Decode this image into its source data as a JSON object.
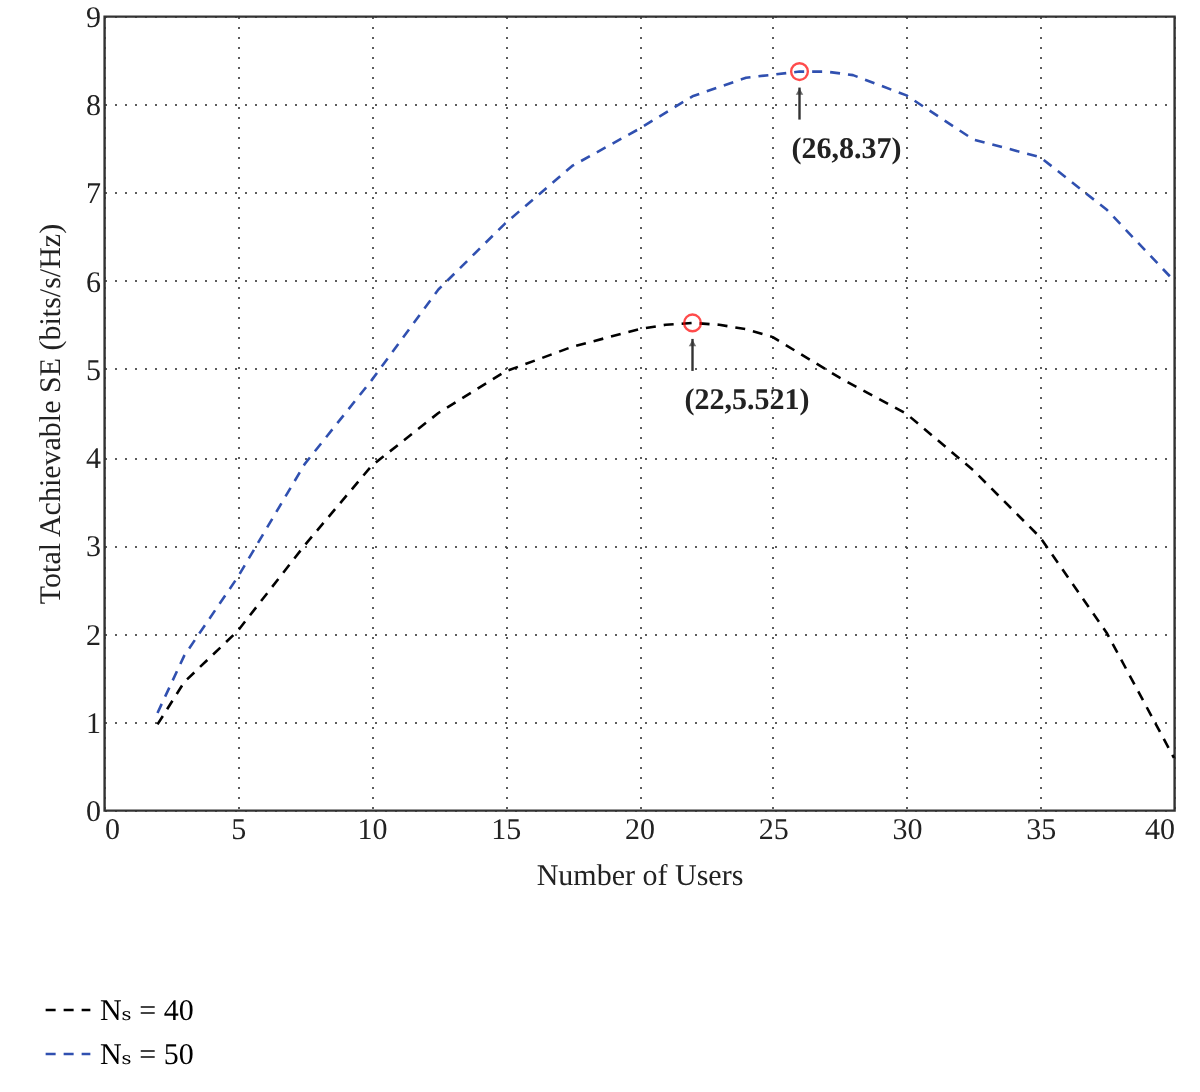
{
  "chart_data": {
    "type": "line",
    "xlabel": "Number of Users",
    "ylabel": "Total Achievable SE (bits/s/Hz)",
    "xlim": [
      0,
      40
    ],
    "ylim": [
      0,
      9
    ],
    "xticks": [
      0,
      5,
      10,
      15,
      20,
      25,
      30,
      35,
      40
    ],
    "yticks": [
      0,
      1,
      2,
      3,
      4,
      5,
      6,
      7,
      8,
      9
    ],
    "grid": true,
    "legend": "bottom left",
    "line_style": "dashed",
    "marker": "none",
    "series": [
      {
        "name": "Nₛ = 40",
        "color": "#000000",
        "x": [
          2,
          3,
          5,
          7.5,
          10,
          12.5,
          15,
          17.5,
          20,
          21,
          22,
          23,
          24,
          25,
          27.5,
          30,
          32.5,
          35,
          37.5,
          40
        ],
        "values": [
          0.97,
          1.45,
          2.03,
          3.0,
          3.9,
          4.5,
          4.97,
          5.25,
          5.45,
          5.5,
          5.521,
          5.5,
          5.45,
          5.36,
          4.9,
          4.49,
          3.85,
          3.09,
          2.0,
          0.59
        ]
      },
      {
        "name": "Nₛ = 50",
        "color": "#3050b0",
        "x": [
          2,
          3,
          5,
          7.5,
          10,
          12.5,
          15,
          17.5,
          20,
          22,
          24,
          26,
          27,
          28,
          30,
          32.5,
          35,
          37.5,
          40
        ],
        "values": [
          1.1,
          1.75,
          2.64,
          3.92,
          4.87,
          5.9,
          6.65,
          7.3,
          7.72,
          8.09,
          8.3,
          8.37,
          8.37,
          8.33,
          8.1,
          7.6,
          7.4,
          6.8,
          6.0
        ]
      },
      {
        "type": "scatter",
        "marker": "circle",
        "color": "#ff0000",
        "x": [
          22,
          26
        ],
        "values": [
          5.521,
          8.37
        ]
      }
    ],
    "annotations": [
      {
        "text": "(22,5.521)",
        "x": 22,
        "y": 5.521
      },
      {
        "text": "(26,8.37)",
        "x": 26,
        "y": 8.37
      }
    ]
  }
}
